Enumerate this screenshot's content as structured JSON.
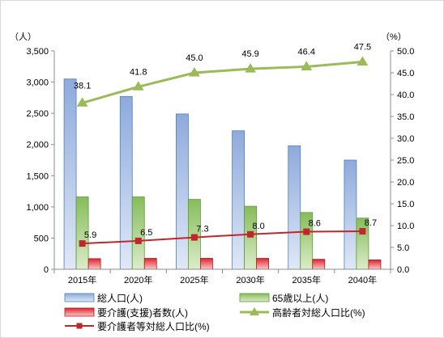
{
  "chart_data": {
    "type": "bar",
    "categories": [
      "2015年",
      "2020年",
      "2025年",
      "2030年",
      "2035年",
      "2040年"
    ],
    "left_axis": {
      "unit": "（人）",
      "min": 0,
      "max": 3500,
      "step": 500,
      "ticks": [
        "0",
        "500",
        "1,000",
        "1,500",
        "2,000",
        "2,500",
        "3,000",
        "3,500"
      ]
    },
    "right_axis": {
      "unit": "（%）",
      "min": 0,
      "max": 50,
      "step": 5,
      "ticks": [
        "0.0",
        "5.0",
        "10.0",
        "15.0",
        "20.0",
        "25.0",
        "30.0",
        "35.0",
        "40.0",
        "45.0",
        "50.0"
      ]
    },
    "series": [
      {
        "name": "総人口(人)",
        "type": "bar",
        "axis": "left",
        "color": "#4f81bd",
        "values": [
          3050,
          2770,
          2490,
          2220,
          1980,
          1750
        ]
      },
      {
        "name": "65歳以上(人)",
        "type": "bar",
        "axis": "left",
        "color": "#70ad47",
        "values": [
          1160,
          1160,
          1120,
          1010,
          910,
          820
        ]
      },
      {
        "name": "要介護(支援)者数(人)",
        "type": "bar",
        "axis": "left",
        "color": "#e4282f",
        "values": [
          170,
          175,
          175,
          175,
          160,
          150
        ]
      },
      {
        "name": "高齢者対総人口比(%)",
        "type": "line",
        "axis": "right",
        "color": "#9bbb59",
        "values": [
          38.1,
          41.8,
          45.0,
          45.9,
          46.4,
          47.5
        ],
        "labels": [
          "38.1",
          "41.8",
          "45.0",
          "45.9",
          "46.4",
          "47.5"
        ]
      },
      {
        "name": "要介護者等対総人口比(%)",
        "type": "line",
        "axis": "right",
        "color": "#c0272d",
        "values": [
          5.9,
          6.5,
          7.3,
          8.0,
          8.6,
          8.7
        ],
        "labels": [
          "5.9",
          "6.5",
          "7.3",
          "8.0",
          "8.6",
          "8.7"
        ]
      }
    ],
    "grid": false,
    "legend_position": "bottom"
  }
}
